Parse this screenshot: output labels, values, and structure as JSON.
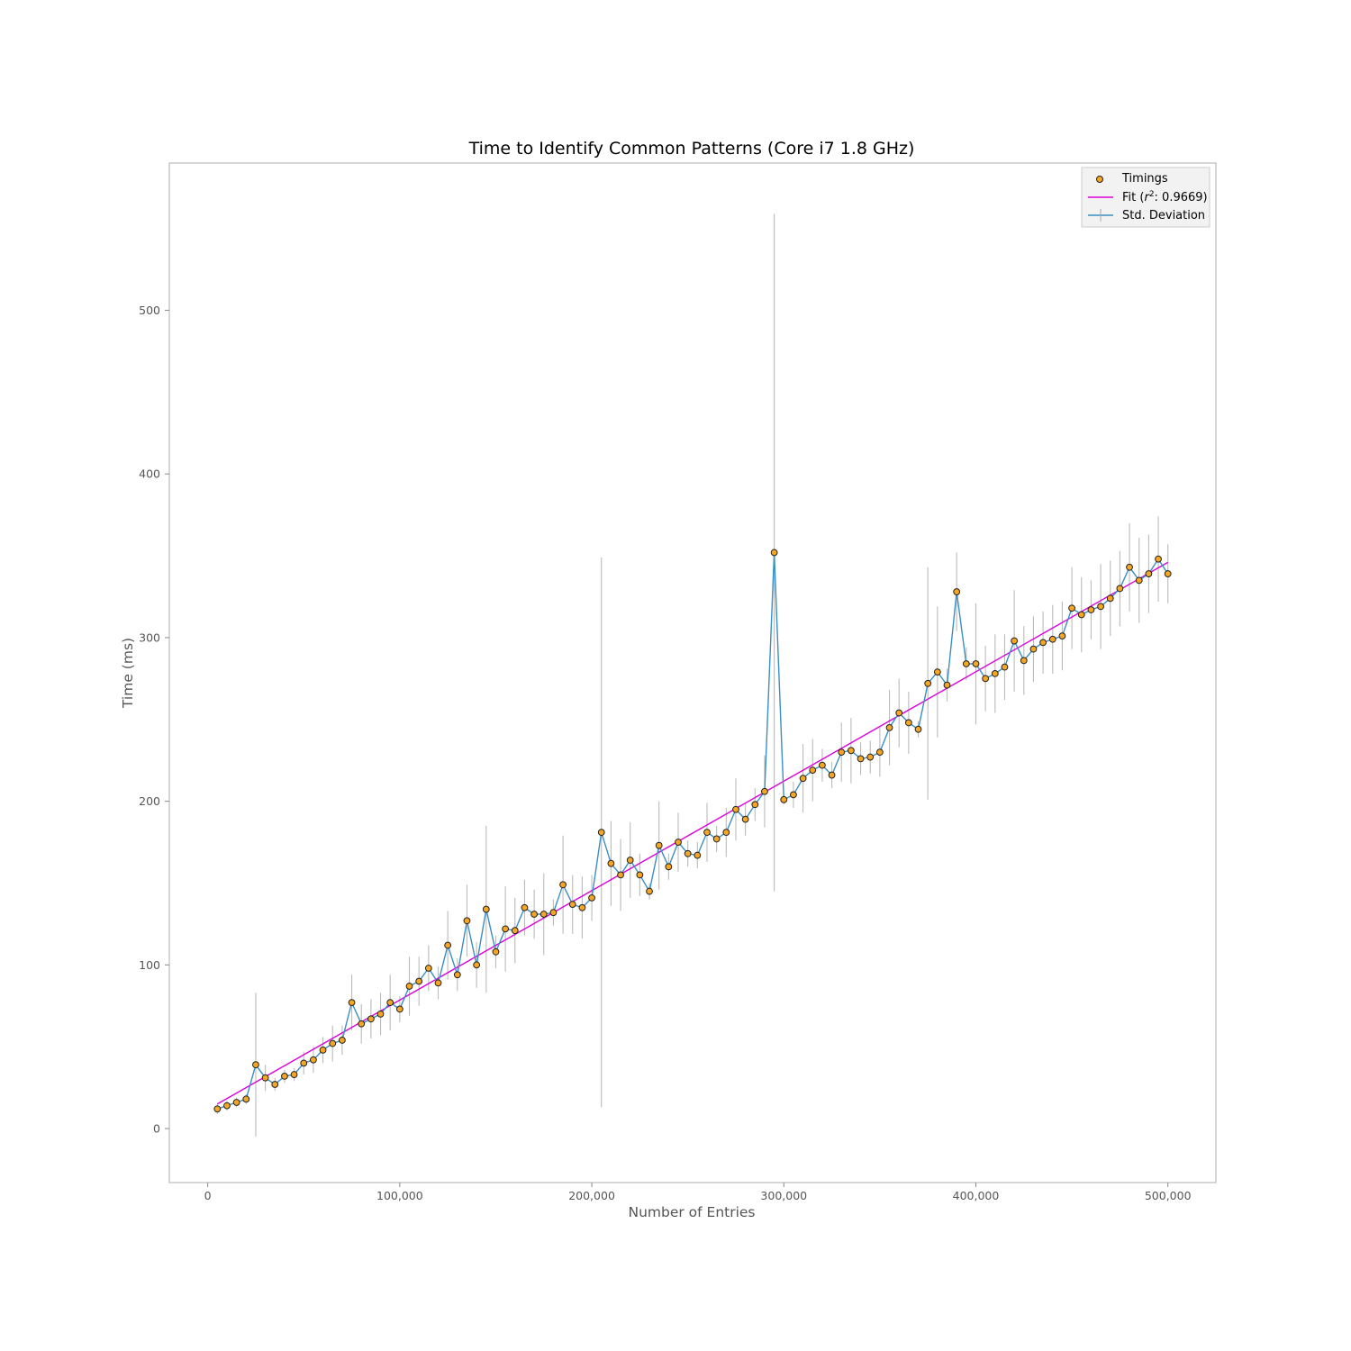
{
  "chart_data": {
    "type": "scatter",
    "title": "Time to Identify Common Patterns (Core i7 1.8 GHz)",
    "xlabel": "Number of Entries",
    "ylabel": "Time (ms)",
    "xlim": [
      -20000,
      525000
    ],
    "ylim": [
      -33,
      590
    ],
    "xticks": [
      0,
      100000,
      200000,
      300000,
      400000,
      500000
    ],
    "xtick_labels": [
      "0",
      "100,000",
      "200,000",
      "300,000",
      "400,000",
      "500,000"
    ],
    "yticks": [
      0,
      100,
      200,
      300,
      400,
      500
    ],
    "ytick_labels": [
      "0",
      "100",
      "200",
      "300",
      "400",
      "500"
    ],
    "grid": false,
    "legend_position": "top-right",
    "legend": {
      "timings": "Timings",
      "fit_prefix": "Fit (",
      "fit_r": "r",
      "fit_sup": "2",
      "fit_suffix": ": 0.9669)",
      "std": "Std. Deviation"
    },
    "colors": {
      "point_fill": "#f5a623",
      "point_edge": "#222222",
      "line": "#3b8fc2",
      "fit": "#dd00dd",
      "errorbar": "#bbbbbb",
      "frame": "#bbbbbb"
    },
    "x": [
      5000,
      10000,
      15000,
      20000,
      25000,
      30000,
      35000,
      40000,
      45000,
      50000,
      55000,
      60000,
      65000,
      70000,
      75000,
      80000,
      85000,
      90000,
      95000,
      100000,
      105000,
      110000,
      115000,
      120000,
      125000,
      130000,
      135000,
      140000,
      145000,
      150000,
      155000,
      160000,
      165000,
      170000,
      175000,
      180000,
      185000,
      190000,
      195000,
      200000,
      205000,
      210000,
      215000,
      220000,
      225000,
      230000,
      235000,
      240000,
      245000,
      250000,
      255000,
      260000,
      265000,
      270000,
      275000,
      280000,
      285000,
      290000,
      295000,
      300000,
      305000,
      310000,
      315000,
      320000,
      325000,
      330000,
      335000,
      340000,
      345000,
      350000,
      355000,
      360000,
      365000,
      370000,
      375000,
      380000,
      385000,
      390000,
      395000,
      400000,
      405000,
      410000,
      415000,
      420000,
      425000,
      430000,
      435000,
      440000,
      445000,
      450000,
      455000,
      460000,
      465000,
      470000,
      475000,
      480000,
      485000,
      490000,
      495000,
      500000
    ],
    "series": [
      {
        "name": "Timings",
        "values": [
          12,
          14,
          16,
          18,
          39,
          31,
          27,
          32,
          33,
          40,
          42,
          48,
          52,
          54,
          77,
          64,
          67,
          70,
          77,
          73,
          87,
          90,
          98,
          89,
          112,
          94,
          127,
          100,
          134,
          108,
          122,
          121,
          135,
          131,
          131,
          132,
          149,
          137,
          135,
          141,
          181,
          162,
          155,
          164,
          155,
          145,
          173,
          160,
          175,
          168,
          167,
          181,
          177,
          181,
          195,
          189,
          198,
          206,
          352,
          201,
          204,
          214,
          219,
          222,
          216,
          230,
          231,
          226,
          227,
          230,
          245,
          254,
          248,
          244,
          272,
          279,
          271,
          328,
          284,
          284,
          275,
          278,
          282,
          298,
          286,
          293,
          297,
          299,
          301,
          318,
          314,
          317,
          319,
          324,
          330,
          343,
          335,
          339,
          348,
          339
        ],
        "std": [
          3,
          3,
          3,
          3,
          44,
          8,
          4,
          4,
          4,
          7,
          8,
          8,
          11,
          9,
          17,
          12,
          12,
          13,
          17,
          8,
          18,
          15,
          14,
          10,
          21,
          10,
          22,
          14,
          51,
          10,
          26,
          20,
          17,
          15,
          25,
          8,
          30,
          18,
          19,
          14,
          168,
          26,
          22,
          23,
          13,
          5,
          27,
          8,
          18,
          8,
          8,
          18,
          8,
          15,
          19,
          10,
          10,
          22,
          207,
          3,
          8,
          21,
          19,
          10,
          8,
          18,
          20,
          10,
          10,
          15,
          23,
          21,
          19,
          5,
          71,
          40,
          10,
          24,
          10,
          37,
          20,
          24,
          20,
          31,
          21,
          20,
          19,
          21,
          21,
          25,
          23,
          18,
          26,
          23,
          23,
          27,
          26,
          24,
          26,
          18
        ]
      },
      {
        "name": "Fit",
        "type": "line",
        "x": [
          5000,
          500000
        ],
        "values": [
          15,
          346
        ]
      }
    ]
  }
}
